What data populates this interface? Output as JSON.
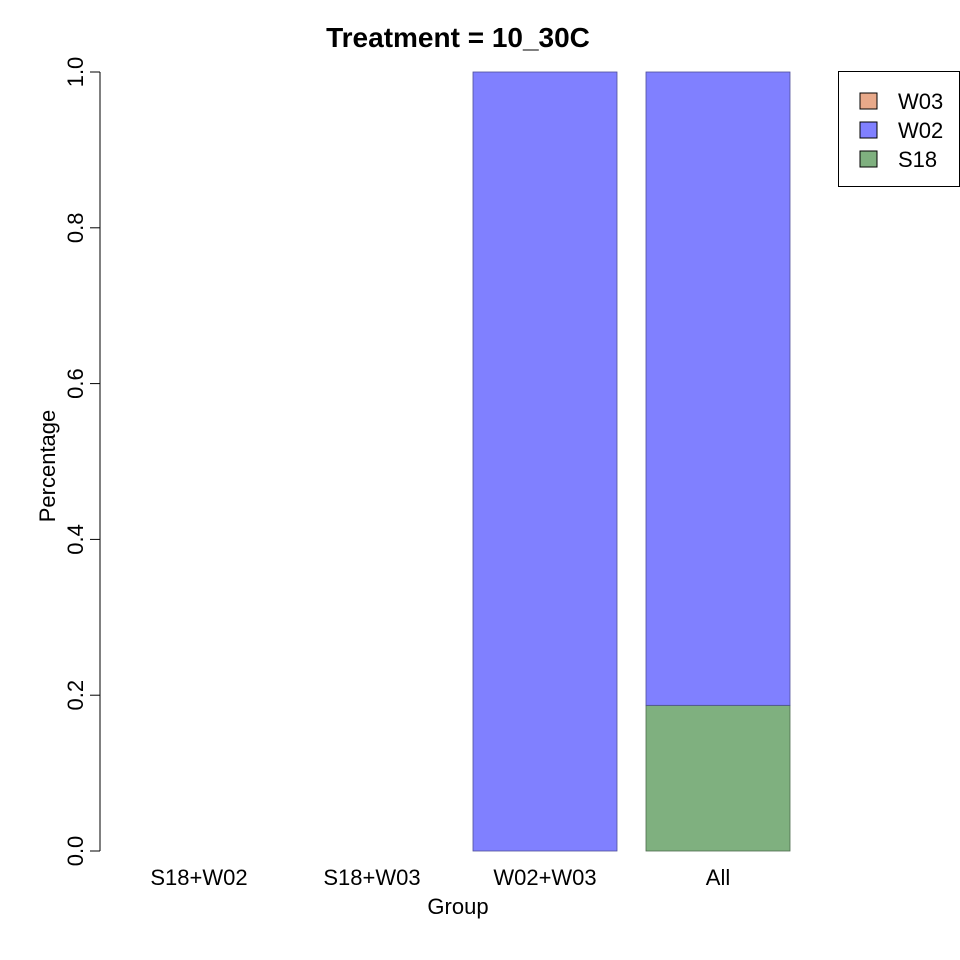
{
  "chart_data": {
    "type": "bar",
    "stacked": true,
    "title": "Treatment = 10_30C",
    "xlabel": "Group",
    "ylabel": "Percentage",
    "ylim": [
      0,
      1
    ],
    "yticks": [
      "0.0",
      "0.2",
      "0.4",
      "0.6",
      "0.8",
      "1.0"
    ],
    "categories": [
      "S18+W02",
      "S18+W03",
      "W02+W03",
      "All"
    ],
    "series": [
      {
        "name": "S18",
        "color": "#7FB07F",
        "values": [
          0,
          0,
          0,
          0.187
        ]
      },
      {
        "name": "W02",
        "color": "#8080FF",
        "values": [
          0,
          0,
          1.0,
          0.813
        ]
      },
      {
        "name": "W03",
        "color": "#E8A98A",
        "values": [
          0,
          0,
          0,
          0
        ]
      }
    ],
    "legend": {
      "position": "top-right",
      "order": [
        "W03",
        "W02",
        "S18"
      ]
    },
    "grid": false
  }
}
